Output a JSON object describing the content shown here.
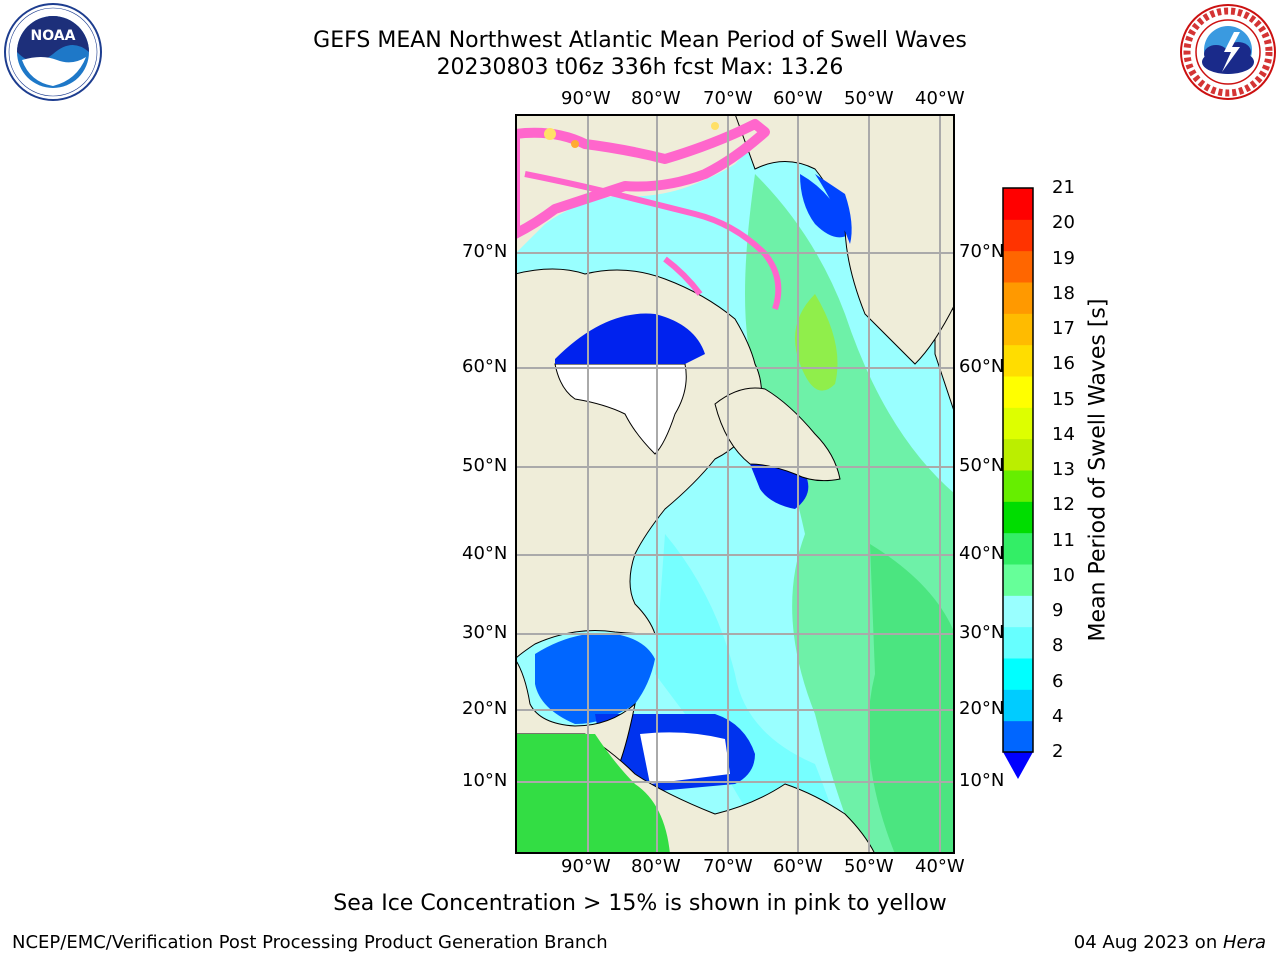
{
  "header": {
    "title_line1": "GEFS MEAN Northwest Atlantic Mean Period of Swell Waves",
    "title_line2": "20230803 t06z 336h fcst   Max: 13.26"
  },
  "logos": {
    "left": "noaa-logo",
    "right": "national-weather-service-logo"
  },
  "map": {
    "lon_ticks": [
      "90°W",
      "80°W",
      "70°W",
      "60°W",
      "50°W",
      "40°W"
    ],
    "lat_ticks": [
      "70°N",
      "60°N",
      "50°N",
      "40°N",
      "30°N",
      "20°N",
      "10°N"
    ],
    "colors": {
      "land": "#efedd9",
      "unmasked": "#ffffff",
      "ice_pink": "#ff66cc",
      "ice_yellow": "#ffe066"
    }
  },
  "colorbar": {
    "label": "Mean Period of Swell Waves [s]",
    "ticks": [
      "2",
      "4",
      "6",
      "8",
      "9",
      "10",
      "11",
      "12",
      "13",
      "14",
      "15",
      "16",
      "17",
      "18",
      "19",
      "20",
      "21"
    ],
    "colors": [
      "#0066ff",
      "#00ccff",
      "#00ffff",
      "#66ffff",
      "#99ffff",
      "#66ff99",
      "#33ee66",
      "#00dd00",
      "#66ee00",
      "#bbee00",
      "#ddff00",
      "#ffff00",
      "#ffdd00",
      "#ffbb00",
      "#ff9900",
      "#ff6600",
      "#ff3300",
      "#ff0000"
    ],
    "under_color": "#0000ff"
  },
  "caption": "Sea Ice Concentration > 15% is shown in pink to yellow",
  "footer": {
    "left": "NCEP/EMC/Verification Post Processing Product Generation Branch",
    "right_prefix": "04 Aug 2023 on ",
    "right_italic": "Hera"
  }
}
